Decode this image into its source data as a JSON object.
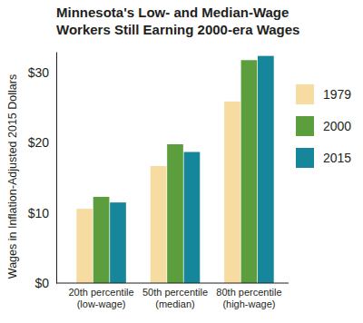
{
  "chart_data": {
    "type": "bar",
    "title": "Minnesota's Low- and Median-Wage Workers Still Earning 2000-era Wages",
    "y_label": "Wages in Inflation-Adjusted 2015 Dollars",
    "categories": [
      "20th percentile (low-wage)",
      "50th percentile (median)",
      "80th percentile (high-wage)"
    ],
    "series": [
      {
        "name": "1979",
        "color": "#f7dca2",
        "values": [
          10.6,
          16.7,
          25.9
        ]
      },
      {
        "name": "2000",
        "color": "#5c9e3d",
        "values": [
          12.3,
          19.8,
          31.8
        ]
      },
      {
        "name": "2015",
        "color": "#16879a",
        "values": [
          11.5,
          18.7,
          32.4
        ]
      }
    ],
    "ylim": [
      0,
      33
    ],
    "yticks": [
      {
        "value": 0,
        "label": "$0"
      },
      {
        "value": 10,
        "label": "$10"
      },
      {
        "value": 20,
        "label": "$20"
      },
      {
        "value": 30,
        "label": "$30"
      }
    ],
    "grid": false,
    "legend": "right"
  }
}
